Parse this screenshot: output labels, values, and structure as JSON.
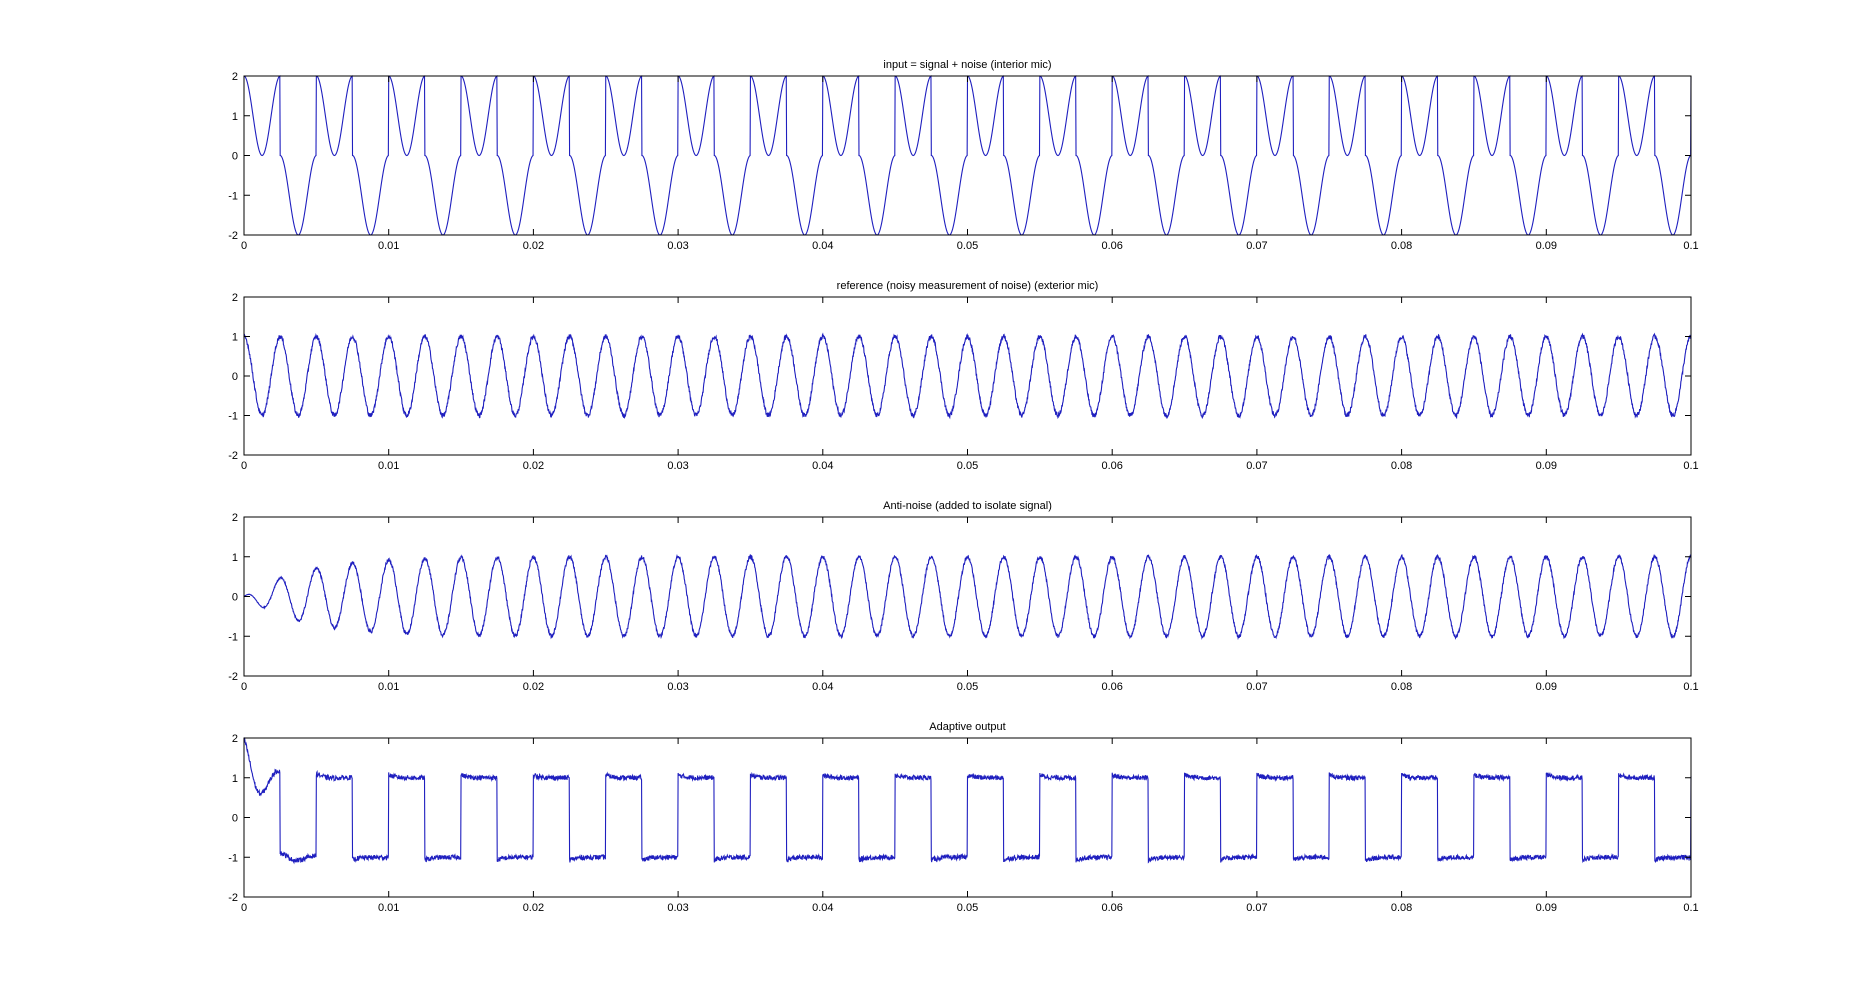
{
  "chart_data": [
    {
      "type": "line",
      "title": "input = signal + noise   (interior mic)",
      "xlim": [
        0,
        0.1
      ],
      "ylim": [
        -2,
        2
      ],
      "xticks": [
        0,
        0.01,
        0.02,
        0.03,
        0.04,
        0.05,
        0.06,
        0.07,
        0.08,
        0.09,
        0.1
      ],
      "xtick_labels": [
        "0",
        "0.01",
        "0.02",
        "0.03",
        "0.04",
        "0.05",
        "0.06",
        "0.07",
        "0.08",
        "0.09",
        "0.1"
      ],
      "yticks": [
        -2,
        -1,
        0,
        1,
        2
      ],
      "ytick_labels": [
        "-2",
        "-1",
        "0",
        "1",
        "2"
      ],
      "grid": false,
      "line_color": "#1f1fbf",
      "series": [
        {
          "kind": "sine_plus_square",
          "sine_frequency_hz": 400,
          "sine_amplitude": 1,
          "square_frequency_hz": 200,
          "square_amplitude": 1,
          "noise": 0
        }
      ]
    },
    {
      "type": "line",
      "title": "reference  (noisy measurement of noise)   (exterior mic)",
      "xlim": [
        0,
        0.1
      ],
      "ylim": [
        -2,
        2
      ],
      "xticks": [
        0,
        0.01,
        0.02,
        0.03,
        0.04,
        0.05,
        0.06,
        0.07,
        0.08,
        0.09,
        0.1
      ],
      "xtick_labels": [
        "0",
        "0.01",
        "0.02",
        "0.03",
        "0.04",
        "0.05",
        "0.06",
        "0.07",
        "0.08",
        "0.09",
        "0.1"
      ],
      "yticks": [
        -2,
        -1,
        0,
        1,
        2
      ],
      "ytick_labels": [
        "-2",
        "-1",
        "0",
        "1",
        "2"
      ],
      "grid": false,
      "line_color": "#1f1fbf",
      "series": [
        {
          "kind": "noisy_sine",
          "frequency_hz": 400,
          "amplitude": 1,
          "noise": 0.06
        }
      ]
    },
    {
      "type": "line",
      "title": "Anti-noise (added to isolate signal)",
      "xlim": [
        0,
        0.1
      ],
      "ylim": [
        -2,
        2
      ],
      "xticks": [
        0,
        0.01,
        0.02,
        0.03,
        0.04,
        0.05,
        0.06,
        0.07,
        0.08,
        0.09,
        0.1
      ],
      "xtick_labels": [
        "0",
        "0.01",
        "0.02",
        "0.03",
        "0.04",
        "0.05",
        "0.06",
        "0.07",
        "0.08",
        "0.09",
        "0.1"
      ],
      "yticks": [
        -2,
        -1,
        0,
        1,
        2
      ],
      "ytick_labels": [
        "-2",
        "-1",
        "0",
        "1",
        "2"
      ],
      "grid": false,
      "line_color": "#1f1fbf",
      "series": [
        {
          "kind": "adapting_sine",
          "frequency_hz": 400,
          "amplitude": 1,
          "time_constant_s": 0.004,
          "noise": 0.05
        }
      ]
    },
    {
      "type": "line",
      "title": "Adaptive output",
      "xlim": [
        0,
        0.1
      ],
      "ylim": [
        -2,
        2
      ],
      "xticks": [
        0,
        0.01,
        0.02,
        0.03,
        0.04,
        0.05,
        0.06,
        0.07,
        0.08,
        0.09,
        0.1
      ],
      "xtick_labels": [
        "0",
        "0.01",
        "0.02",
        "0.03",
        "0.04",
        "0.05",
        "0.06",
        "0.07",
        "0.08",
        "0.09",
        "0.1"
      ],
      "yticks": [
        -2,
        -1,
        0,
        1,
        2
      ],
      "ytick_labels": [
        "-2",
        "-1",
        "0",
        "1",
        "2"
      ],
      "grid": false,
      "line_color": "#1f1fbf",
      "series": [
        {
          "kind": "settling_square",
          "frequency_hz": 200,
          "amplitude": 1,
          "noise": 0.06
        }
      ]
    }
  ]
}
